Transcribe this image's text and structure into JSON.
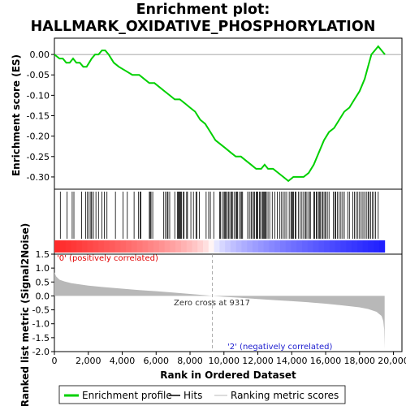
{
  "title": [
    "Enrichment plot:",
    "HALLMARK_OXIDATIVE_PHOSPHORYLATION"
  ],
  "colors": {
    "enrichment_line": "#00d000",
    "hits": "#000000",
    "ranking_fill": "#b8b8b8",
    "positive_label": "#e00000",
    "negative_label": "#2020d0"
  },
  "chart_data": [
    {
      "type": "line",
      "name": "enrichment_profile",
      "ylabel": "Enrichment score (ES)",
      "ylim": [
        -0.33,
        0.04
      ],
      "yticks": [
        0.0,
        -0.05,
        -0.1,
        -0.15,
        -0.2,
        -0.25,
        -0.3
      ],
      "ytick_labels": [
        "0.00",
        "-0.05",
        "-0.10",
        "-0.15",
        "-0.20",
        "-0.25",
        "-0.30"
      ],
      "xlim": [
        0,
        20500
      ],
      "points": [
        [
          0,
          0.0
        ],
        [
          300,
          -0.01
        ],
        [
          500,
          -0.01
        ],
        [
          700,
          -0.02
        ],
        [
          900,
          -0.02
        ],
        [
          1100,
          -0.01
        ],
        [
          1300,
          -0.02
        ],
        [
          1500,
          -0.02
        ],
        [
          1700,
          -0.03
        ],
        [
          1900,
          -0.03
        ],
        [
          2050,
          -0.02
        ],
        [
          2200,
          -0.01
        ],
        [
          2400,
          0.0
        ],
        [
          2600,
          0.0
        ],
        [
          2800,
          0.01
        ],
        [
          3000,
          0.01
        ],
        [
          3200,
          0.0
        ],
        [
          3500,
          -0.02
        ],
        [
          3800,
          -0.03
        ],
        [
          4200,
          -0.04
        ],
        [
          4600,
          -0.05
        ],
        [
          5000,
          -0.05
        ],
        [
          5300,
          -0.06
        ],
        [
          5600,
          -0.07
        ],
        [
          5900,
          -0.07
        ],
        [
          6200,
          -0.08
        ],
        [
          6500,
          -0.09
        ],
        [
          6800,
          -0.1
        ],
        [
          7100,
          -0.11
        ],
        [
          7400,
          -0.11
        ],
        [
          7700,
          -0.12
        ],
        [
          8000,
          -0.13
        ],
        [
          8300,
          -0.14
        ],
        [
          8600,
          -0.16
        ],
        [
          8900,
          -0.17
        ],
        [
          9200,
          -0.19
        ],
        [
          9500,
          -0.21
        ],
        [
          9800,
          -0.22
        ],
        [
          10100,
          -0.23
        ],
        [
          10400,
          -0.24
        ],
        [
          10700,
          -0.25
        ],
        [
          11000,
          -0.25
        ],
        [
          11300,
          -0.26
        ],
        [
          11600,
          -0.27
        ],
        [
          11900,
          -0.28
        ],
        [
          12200,
          -0.28
        ],
        [
          12400,
          -0.27
        ],
        [
          12600,
          -0.28
        ],
        [
          12900,
          -0.28
        ],
        [
          13200,
          -0.29
        ],
        [
          13500,
          -0.3
        ],
        [
          13800,
          -0.31
        ],
        [
          14100,
          -0.3
        ],
        [
          14400,
          -0.3
        ],
        [
          14700,
          -0.3
        ],
        [
          15000,
          -0.29
        ],
        [
          15300,
          -0.27
        ],
        [
          15600,
          -0.24
        ],
        [
          15900,
          -0.21
        ],
        [
          16200,
          -0.19
        ],
        [
          16500,
          -0.18
        ],
        [
          16800,
          -0.16
        ],
        [
          17100,
          -0.14
        ],
        [
          17400,
          -0.13
        ],
        [
          17700,
          -0.11
        ],
        [
          18000,
          -0.09
        ],
        [
          18300,
          -0.06
        ],
        [
          18500,
          -0.03
        ],
        [
          18700,
          0.0
        ],
        [
          18900,
          0.01
        ],
        [
          19100,
          0.02
        ],
        [
          19300,
          0.01
        ],
        [
          19500,
          0.0
        ]
      ]
    },
    {
      "type": "area",
      "name": "ranked_list_metric",
      "ylabel": "Ranked list metric (Signal2Noise)",
      "xlabel": "Rank in Ordered Dataset",
      "xlim": [
        0,
        20500
      ],
      "ylim": [
        -2.0,
        1.5
      ],
      "xticks": [
        0,
        2000,
        4000,
        6000,
        8000,
        10000,
        12000,
        14000,
        16000,
        18000,
        20000
      ],
      "xtick_labels": [
        "0",
        "2,000",
        "4,000",
        "6,000",
        "8,000",
        "10,000",
        "12,000",
        "14,000",
        "16,000",
        "18,000",
        "20,000"
      ],
      "yticks": [
        1.5,
        1.0,
        0.5,
        0.0,
        -0.5,
        -1.0,
        -1.5,
        -2.0
      ],
      "ytick_labels": [
        "1.5",
        "1.0",
        "0.5",
        "0.0",
        "-0.5",
        "-1.0",
        "-1.5",
        "-2.0"
      ],
      "points": [
        [
          0,
          0.85
        ],
        [
          100,
          0.7
        ],
        [
          300,
          0.58
        ],
        [
          600,
          0.52
        ],
        [
          1000,
          0.46
        ],
        [
          2000,
          0.37
        ],
        [
          3000,
          0.31
        ],
        [
          4000,
          0.26
        ],
        [
          5000,
          0.21
        ],
        [
          6000,
          0.17
        ],
        [
          7000,
          0.12
        ],
        [
          8000,
          0.07
        ],
        [
          9000,
          0.02
        ],
        [
          9317,
          0.0
        ],
        [
          10000,
          -0.03
        ],
        [
          11000,
          -0.07
        ],
        [
          12000,
          -0.11
        ],
        [
          13000,
          -0.15
        ],
        [
          14000,
          -0.19
        ],
        [
          15000,
          -0.23
        ],
        [
          16000,
          -0.28
        ],
        [
          17000,
          -0.34
        ],
        [
          18000,
          -0.41
        ],
        [
          18500,
          -0.47
        ],
        [
          19000,
          -0.57
        ],
        [
          19300,
          -0.72
        ],
        [
          19400,
          -0.9
        ],
        [
          19450,
          -1.2
        ],
        [
          19480,
          -1.9
        ]
      ],
      "annotations": {
        "zero_cross": "Zero cross at 9317",
        "positive": "'0' (positively correlated)",
        "negative": "'2' (negatively correlated)"
      },
      "zero_cross_rank": 9317
    },
    {
      "type": "scatter",
      "name": "hits",
      "hit_ranks": [
        350,
        750,
        1050,
        1150,
        1600,
        1850,
        1950,
        2050,
        2150,
        2200,
        2300,
        2450,
        2600,
        2800,
        2950,
        3100,
        3600,
        4050,
        4300,
        4700,
        4950,
        5050,
        5100,
        5600,
        5650,
        5700,
        5800,
        6450,
        6550,
        6650,
        6700,
        6800,
        7100,
        7250,
        7300,
        7350,
        7400,
        7450,
        7500,
        7600,
        7650,
        7800,
        7850,
        8050,
        8200,
        8350,
        8400,
        8550,
        8950,
        9100,
        9200,
        9400,
        9750,
        9800,
        9900,
        10000,
        10050,
        10100,
        10150,
        10250,
        10300,
        10400,
        10450,
        10500,
        10600,
        10700,
        10750,
        10800,
        10900,
        11000,
        11050,
        11100,
        11400,
        11500,
        11600,
        11650,
        11750,
        11800,
        11900,
        11950,
        12000,
        12100,
        12150,
        12250,
        12300,
        12350,
        12400,
        12450,
        12500,
        12600,
        12700,
        12850,
        13000,
        13150,
        13300,
        13400,
        13500,
        13600,
        13700,
        13850,
        13950,
        14000,
        14050,
        14100,
        14200,
        14250,
        14400,
        14500,
        14600,
        14700,
        14800,
        14850,
        14950,
        15050,
        15100,
        15300,
        15350,
        15450,
        15500,
        15600,
        15650,
        15700,
        15800,
        15850,
        15950,
        16000,
        16100,
        16200,
        16450,
        16550,
        16600,
        16700,
        16800,
        16900,
        17000,
        17100,
        17300,
        17400,
        17600,
        17700,
        17800,
        17900,
        18000,
        18100,
        18200,
        18300,
        18400,
        18500,
        18550,
        18650,
        18750,
        18850,
        18950,
        19100
      ]
    }
  ],
  "legend": {
    "enrichment_profile": "Enrichment profile",
    "hits": "Hits",
    "ranking_metric": "Ranking metric scores"
  }
}
